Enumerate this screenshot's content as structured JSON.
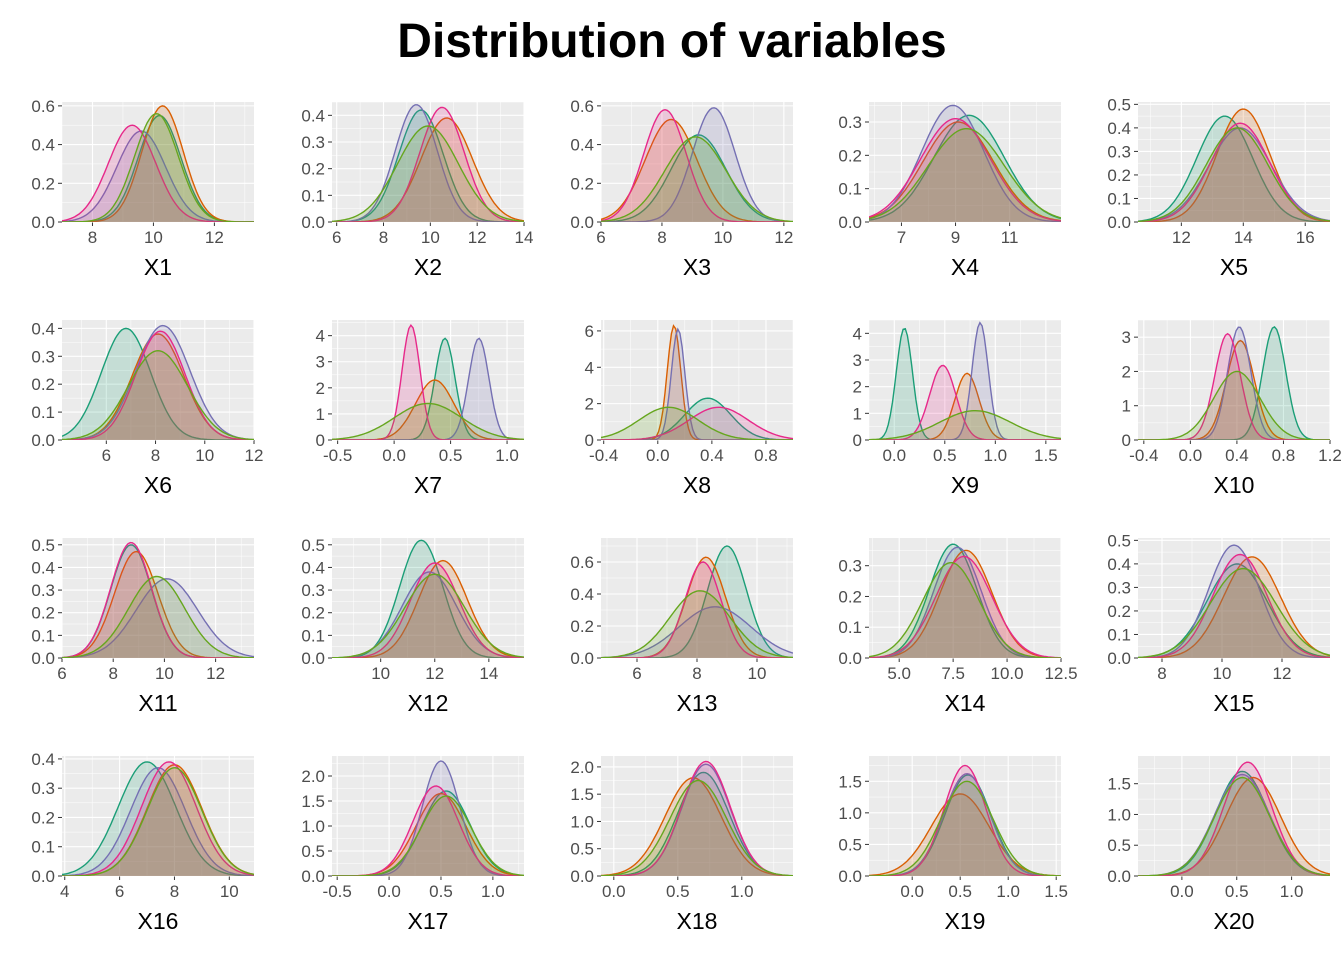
{
  "title": "Distribution of variables",
  "colors": [
    "#1b9e77",
    "#d95f02",
    "#7570b3",
    "#e7298a",
    "#66a61e"
  ],
  "chart_data": [
    {
      "type": "area",
      "xlabel": "X1",
      "xlim": [
        7,
        13.3
      ],
      "ylim": [
        0,
        0.62
      ],
      "xticks": [
        8,
        10,
        12
      ],
      "yticks": [
        0.0,
        0.2,
        0.4,
        0.6
      ],
      "ytick_labels": [
        "0.0",
        "0.2",
        "0.4",
        "0.6"
      ],
      "series": [
        {
          "mean": 10.2,
          "sd": 0.7,
          "peak": 0.55
        },
        {
          "mean": 10.3,
          "sd": 0.68,
          "peak": 0.6
        },
        {
          "mean": 9.6,
          "sd": 0.8,
          "peak": 0.47
        },
        {
          "mean": 9.3,
          "sd": 0.78,
          "peak": 0.5
        },
        {
          "mean": 10.1,
          "sd": 0.72,
          "peak": 0.56
        }
      ]
    },
    {
      "type": "area",
      "xlabel": "X2",
      "xlim": [
        5.8,
        14
      ],
      "ylim": [
        0,
        0.45
      ],
      "xticks": [
        6,
        8,
        10,
        12,
        14
      ],
      "yticks": [
        0.0,
        0.1,
        0.2,
        0.3,
        0.4
      ],
      "ytick_labels": [
        "0.0",
        "0.1",
        "0.2",
        "0.3",
        "0.4"
      ],
      "series": [
        {
          "mean": 9.6,
          "sd": 0.95,
          "peak": 0.42
        },
        {
          "mean": 10.7,
          "sd": 1.1,
          "peak": 0.39
        },
        {
          "mean": 9.4,
          "sd": 0.9,
          "peak": 0.44
        },
        {
          "mean": 10.5,
          "sd": 0.95,
          "peak": 0.43
        },
        {
          "mean": 9.9,
          "sd": 1.3,
          "peak": 0.36
        }
      ]
    },
    {
      "type": "area",
      "xlabel": "X3",
      "xlim": [
        6,
        12.3
      ],
      "ylim": [
        0,
        0.62
      ],
      "xticks": [
        6,
        8,
        10,
        12
      ],
      "yticks": [
        0.0,
        0.2,
        0.4,
        0.6
      ],
      "ytick_labels": [
        "0.0",
        "0.2",
        "0.4",
        "0.6"
      ],
      "series": [
        {
          "mean": 9.2,
          "sd": 0.9,
          "peak": 0.45
        },
        {
          "mean": 8.3,
          "sd": 0.85,
          "peak": 0.53
        },
        {
          "mean": 9.7,
          "sd": 0.7,
          "peak": 0.59
        },
        {
          "mean": 8.1,
          "sd": 0.7,
          "peak": 0.58
        },
        {
          "mean": 9.1,
          "sd": 1.0,
          "peak": 0.44
        }
      ]
    },
    {
      "type": "area",
      "xlabel": "X4",
      "xlim": [
        5.8,
        12.9
      ],
      "ylim": [
        0,
        0.36
      ],
      "xticks": [
        7,
        9,
        11,
        13
      ],
      "yticks": [
        0.0,
        0.1,
        0.2,
        0.3
      ],
      "ytick_labels": [
        "0.0",
        "0.1",
        "0.2",
        "0.3"
      ],
      "series": [
        {
          "mean": 9.5,
          "sd": 1.3,
          "peak": 0.32
        },
        {
          "mean": 9.1,
          "sd": 1.3,
          "peak": 0.3
        },
        {
          "mean": 8.9,
          "sd": 1.15,
          "peak": 0.35
        },
        {
          "mean": 9.0,
          "sd": 1.3,
          "peak": 0.31
        },
        {
          "mean": 9.4,
          "sd": 1.4,
          "peak": 0.28
        }
      ]
    },
    {
      "type": "area",
      "xlabel": "X5",
      "xlim": [
        10.6,
        16.8
      ],
      "ylim": [
        0,
        0.51
      ],
      "xticks": [
        12,
        14,
        16
      ],
      "yticks": [
        0.0,
        0.1,
        0.2,
        0.3,
        0.4,
        0.5
      ],
      "ytick_labels": [
        "0.0",
        "0.1",
        "0.2",
        "0.3",
        "0.4",
        "0.5"
      ],
      "series": [
        {
          "mean": 13.4,
          "sd": 0.9,
          "peak": 0.45
        },
        {
          "mean": 14.0,
          "sd": 0.85,
          "peak": 0.48
        },
        {
          "mean": 13.9,
          "sd": 1.0,
          "peak": 0.4
        },
        {
          "mean": 13.9,
          "sd": 0.95,
          "peak": 0.42
        },
        {
          "mean": 13.8,
          "sd": 1.0,
          "peak": 0.4
        }
      ]
    },
    {
      "type": "area",
      "xlabel": "X6",
      "xlim": [
        4.2,
        12
      ],
      "ylim": [
        0,
        0.43
      ],
      "xticks": [
        4,
        6,
        8,
        10,
        12
      ],
      "yticks": [
        0.0,
        0.1,
        0.2,
        0.3,
        0.4
      ],
      "ytick_labels": [
        "0.0",
        "0.1",
        "0.2",
        "0.3",
        "0.4"
      ],
      "series": [
        {
          "mean": 6.8,
          "sd": 1.0,
          "peak": 0.4
        },
        {
          "mean": 8.1,
          "sd": 1.05,
          "peak": 0.38
        },
        {
          "mean": 8.3,
          "sd": 1.1,
          "peak": 0.41
        },
        {
          "mean": 8.2,
          "sd": 1.0,
          "peak": 0.39
        },
        {
          "mean": 8.1,
          "sd": 1.2,
          "peak": 0.32
        }
      ]
    },
    {
      "type": "area",
      "xlabel": "X7",
      "xlim": [
        -0.55,
        1.15
      ],
      "ylim": [
        0,
        4.6
      ],
      "xticks": [
        -0.5,
        0.0,
        0.5,
        1.0
      ],
      "xtick_labels": [
        "-0.5",
        "0.0",
        "0.5",
        "1.0"
      ],
      "yticks": [
        0,
        1,
        2,
        3,
        4
      ],
      "ytick_labels": [
        "0",
        "1",
        "2",
        "3",
        "4"
      ],
      "series": [
        {
          "mean": 0.45,
          "sd": 0.09,
          "peak": 3.9
        },
        {
          "mean": 0.36,
          "sd": 0.17,
          "peak": 2.3
        },
        {
          "mean": 0.75,
          "sd": 0.09,
          "peak": 3.9
        },
        {
          "mean": 0.15,
          "sd": 0.08,
          "peak": 4.4
        },
        {
          "mean": 0.3,
          "sd": 0.3,
          "peak": 1.4
        }
      ]
    },
    {
      "type": "area",
      "xlabel": "X8",
      "xlim": [
        -0.42,
        1.0
      ],
      "ylim": [
        0,
        6.6
      ],
      "xticks": [
        -0.4,
        0.0,
        0.4,
        0.8
      ],
      "xtick_labels": [
        "-0.4",
        "0.0",
        "0.4",
        "0.8"
      ],
      "yticks": [
        0,
        2,
        4,
        6
      ],
      "ytick_labels": [
        "0",
        "2",
        "4",
        "6"
      ],
      "series": [
        {
          "mean": 0.37,
          "sd": 0.17,
          "peak": 2.3
        },
        {
          "mean": 0.12,
          "sd": 0.05,
          "peak": 6.3
        },
        {
          "mean": 0.15,
          "sd": 0.05,
          "peak": 6.1
        },
        {
          "mean": 0.45,
          "sd": 0.22,
          "peak": 1.8
        },
        {
          "mean": 0.08,
          "sd": 0.22,
          "peak": 1.8
        }
      ]
    },
    {
      "type": "area",
      "xlabel": "X9",
      "xlim": [
        -0.25,
        1.65
      ],
      "ylim": [
        0,
        4.5
      ],
      "xticks": [
        0.0,
        0.5,
        1.0,
        1.5
      ],
      "xtick_labels": [
        "0.0",
        "0.5",
        "1.0",
        "1.5"
      ],
      "yticks": [
        0,
        1,
        2,
        3,
        4
      ],
      "ytick_labels": [
        "0",
        "1",
        "2",
        "3",
        "4"
      ],
      "series": [
        {
          "mean": 0.1,
          "sd": 0.08,
          "peak": 4.2
        },
        {
          "mean": 0.72,
          "sd": 0.12,
          "peak": 2.5
        },
        {
          "mean": 0.85,
          "sd": 0.08,
          "peak": 4.4
        },
        {
          "mean": 0.48,
          "sd": 0.13,
          "peak": 2.8
        },
        {
          "mean": 0.8,
          "sd": 0.35,
          "peak": 1.1
        }
      ]
    },
    {
      "type": "area",
      "xlabel": "X10",
      "xlim": [
        -0.45,
        1.2
      ],
      "ylim": [
        0,
        3.5
      ],
      "xticks": [
        -0.4,
        0.0,
        0.4,
        0.8,
        1.2
      ],
      "xtick_labels": [
        "-0.4",
        "0.0",
        "0.4",
        "0.8",
        "1.2"
      ],
      "yticks": [
        0,
        1,
        2,
        3
      ],
      "ytick_labels": [
        "0",
        "1",
        "2",
        "3"
      ],
      "series": [
        {
          "mean": 0.72,
          "sd": 0.1,
          "peak": 3.3
        },
        {
          "mean": 0.43,
          "sd": 0.12,
          "peak": 2.9
        },
        {
          "mean": 0.42,
          "sd": 0.1,
          "peak": 3.3
        },
        {
          "mean": 0.32,
          "sd": 0.11,
          "peak": 3.1
        },
        {
          "mean": 0.4,
          "sd": 0.2,
          "peak": 2.0
        }
      ]
    },
    {
      "type": "area",
      "xlabel": "X11",
      "xlim": [
        6,
        13.5
      ],
      "ylim": [
        0,
        0.53
      ],
      "xticks": [
        6,
        8,
        10,
        12
      ],
      "yticks": [
        0.0,
        0.1,
        0.2,
        0.3,
        0.4,
        0.5
      ],
      "ytick_labels": [
        "0.0",
        "0.1",
        "0.2",
        "0.3",
        "0.4",
        "0.5"
      ],
      "series": [
        {
          "mean": 8.7,
          "sd": 0.8,
          "peak": 0.5
        },
        {
          "mean": 8.9,
          "sd": 0.85,
          "peak": 0.47
        },
        {
          "mean": 10.1,
          "sd": 1.2,
          "peak": 0.35
        },
        {
          "mean": 8.7,
          "sd": 0.8,
          "peak": 0.51
        },
        {
          "mean": 9.7,
          "sd": 1.1,
          "peak": 0.36
        }
      ]
    },
    {
      "type": "area",
      "xlabel": "X12",
      "xlim": [
        8.2,
        15.3
      ],
      "ylim": [
        0,
        0.53
      ],
      "xticks": [
        8,
        10,
        12,
        14
      ],
      "yticks": [
        0.0,
        0.1,
        0.2,
        0.3,
        0.4,
        0.5
      ],
      "ytick_labels": [
        "0.0",
        "0.1",
        "0.2",
        "0.3",
        "0.4",
        "0.5"
      ],
      "series": [
        {
          "mean": 11.5,
          "sd": 0.8,
          "peak": 0.52
        },
        {
          "mean": 12.3,
          "sd": 0.9,
          "peak": 0.43
        },
        {
          "mean": 11.8,
          "sd": 1.0,
          "peak": 0.38
        },
        {
          "mean": 12.0,
          "sd": 0.9,
          "peak": 0.42
        },
        {
          "mean": 12.0,
          "sd": 1.1,
          "peak": 0.37
        }
      ]
    },
    {
      "type": "area",
      "xlabel": "X13",
      "xlim": [
        4.8,
        11.2
      ],
      "ylim": [
        0,
        0.75
      ],
      "xticks": [
        6,
        8,
        10
      ],
      "yticks": [
        0.0,
        0.2,
        0.4,
        0.6
      ],
      "ytick_labels": [
        "0.0",
        "0.2",
        "0.4",
        "0.6"
      ],
      "series": [
        {
          "mean": 9.0,
          "sd": 0.65,
          "peak": 0.7
        },
        {
          "mean": 8.3,
          "sd": 0.65,
          "peak": 0.63
        },
        {
          "mean": 8.6,
          "sd": 1.2,
          "peak": 0.32
        },
        {
          "mean": 8.2,
          "sd": 0.6,
          "peak": 0.6
        },
        {
          "mean": 8.1,
          "sd": 1.0,
          "peak": 0.42
        }
      ]
    },
    {
      "type": "area",
      "xlabel": "X14",
      "xlim": [
        3.6,
        12.5
      ],
      "ylim": [
        0,
        0.39
      ],
      "xticks": [
        5.0,
        7.5,
        10.0,
        12.5
      ],
      "xtick_labels": [
        "5.0",
        "7.5",
        "10.0",
        "12.5"
      ],
      "yticks": [
        0.0,
        0.1,
        0.2,
        0.3
      ],
      "ytick_labels": [
        "0.0",
        "0.1",
        "0.2",
        "0.3"
      ],
      "series": [
        {
          "mean": 7.5,
          "sd": 1.1,
          "peak": 0.37
        },
        {
          "mean": 8.1,
          "sd": 1.2,
          "peak": 0.35
        },
        {
          "mean": 7.7,
          "sd": 1.1,
          "peak": 0.36
        },
        {
          "mean": 8.0,
          "sd": 1.3,
          "peak": 0.33
        },
        {
          "mean": 7.4,
          "sd": 1.3,
          "peak": 0.31
        }
      ]
    },
    {
      "type": "area",
      "xlabel": "X15",
      "xlim": [
        7.2,
        13.6
      ],
      "ylim": [
        0,
        0.51
      ],
      "xticks": [
        8,
        10,
        12
      ],
      "yticks": [
        0.0,
        0.1,
        0.2,
        0.3,
        0.4,
        0.5
      ],
      "ytick_labels": [
        "0.0",
        "0.1",
        "0.2",
        "0.3",
        "0.4",
        "0.5"
      ],
      "series": [
        {
          "mean": 10.5,
          "sd": 1.0,
          "peak": 0.4
        },
        {
          "mean": 11.0,
          "sd": 0.95,
          "peak": 0.43
        },
        {
          "mean": 10.4,
          "sd": 0.85,
          "peak": 0.48
        },
        {
          "mean": 10.6,
          "sd": 0.9,
          "peak": 0.44
        },
        {
          "mean": 10.7,
          "sd": 1.1,
          "peak": 0.38
        }
      ]
    },
    {
      "type": "area",
      "xlabel": "X16",
      "xlim": [
        3.9,
        10.9
      ],
      "ylim": [
        0,
        0.41
      ],
      "xticks": [
        4,
        6,
        8,
        10
      ],
      "yticks": [
        0.0,
        0.1,
        0.2,
        0.3,
        0.4
      ],
      "ytick_labels": [
        "0.0",
        "0.1",
        "0.2",
        "0.3",
        "0.4"
      ],
      "series": [
        {
          "mean": 7.0,
          "sd": 1.05,
          "peak": 0.39
        },
        {
          "mean": 8.0,
          "sd": 1.0,
          "peak": 0.38
        },
        {
          "mean": 7.4,
          "sd": 1.0,
          "peak": 0.37
        },
        {
          "mean": 7.8,
          "sd": 1.0,
          "peak": 0.39
        },
        {
          "mean": 8.0,
          "sd": 1.0,
          "peak": 0.37
        }
      ]
    },
    {
      "type": "area",
      "xlabel": "X17",
      "xlim": [
        -0.55,
        1.3
      ],
      "ylim": [
        0,
        2.4
      ],
      "xticks": [
        -0.5,
        0.0,
        0.5,
        1.0
      ],
      "xtick_labels": [
        "-0.5",
        "0.0",
        "0.5",
        "1.0"
      ],
      "yticks": [
        0.0,
        0.5,
        1.0,
        1.5,
        2.0
      ],
      "ytick_labels": [
        "0.0",
        "0.5",
        "1.0",
        "1.5",
        "2.0"
      ],
      "series": [
        {
          "mean": 0.55,
          "sd": 0.23,
          "peak": 1.7
        },
        {
          "mean": 0.5,
          "sd": 0.24,
          "peak": 1.65
        },
        {
          "mean": 0.5,
          "sd": 0.18,
          "peak": 2.3
        },
        {
          "mean": 0.45,
          "sd": 0.22,
          "peak": 1.8
        },
        {
          "mean": 0.55,
          "sd": 0.24,
          "peak": 1.6
        }
      ]
    },
    {
      "type": "area",
      "xlabel": "X18",
      "xlim": [
        -0.1,
        1.4
      ],
      "ylim": [
        0,
        2.2
      ],
      "xticks": [
        0.0,
        0.5,
        1.0
      ],
      "xtick_labels": [
        "0.0",
        "0.5",
        "1.0"
      ],
      "yticks": [
        0.0,
        0.5,
        1.0,
        1.5,
        2.0
      ],
      "ytick_labels": [
        "0.0",
        "0.5",
        "1.0",
        "1.5",
        "2.0"
      ],
      "series": [
        {
          "mean": 0.7,
          "sd": 0.2,
          "peak": 1.9
        },
        {
          "mean": 0.62,
          "sd": 0.22,
          "peak": 1.8
        },
        {
          "mean": 0.72,
          "sd": 0.19,
          "peak": 2.05
        },
        {
          "mean": 0.72,
          "sd": 0.19,
          "peak": 2.1
        },
        {
          "mean": 0.66,
          "sd": 0.22,
          "peak": 1.75
        }
      ]
    },
    {
      "type": "area",
      "xlabel": "X19",
      "xlim": [
        -0.45,
        1.55
      ],
      "ylim": [
        0,
        1.9
      ],
      "xticks": [
        0.0,
        0.5,
        1.0,
        1.5
      ],
      "xtick_labels": [
        "0.0",
        "0.5",
        "1.0",
        "1.5"
      ],
      "yticks": [
        0.0,
        0.5,
        1.0,
        1.5
      ],
      "ytick_labels": [
        "0.0",
        "0.5",
        "1.0",
        "1.5"
      ],
      "series": [
        {
          "mean": 0.58,
          "sd": 0.24,
          "peak": 1.6
        },
        {
          "mean": 0.5,
          "sd": 0.3,
          "peak": 1.3
        },
        {
          "mean": 0.57,
          "sd": 0.24,
          "peak": 1.62
        },
        {
          "mean": 0.55,
          "sd": 0.22,
          "peak": 1.75
        },
        {
          "mean": 0.57,
          "sd": 0.27,
          "peak": 1.5
        }
      ]
    },
    {
      "type": "area",
      "xlabel": "X20",
      "xlim": [
        -0.4,
        1.35
      ],
      "ylim": [
        0,
        1.95
      ],
      "xticks": [
        0.0,
        0.5,
        1.0
      ],
      "xtick_labels": [
        "0.0",
        "0.5",
        "1.0"
      ],
      "yticks": [
        0.0,
        0.5,
        1.0,
        1.5
      ],
      "ytick_labels": [
        "0.0",
        "0.5",
        "1.0",
        "1.5"
      ],
      "series": [
        {
          "mean": 0.55,
          "sd": 0.24,
          "peak": 1.7
        },
        {
          "mean": 0.65,
          "sd": 0.25,
          "peak": 1.6
        },
        {
          "mean": 0.55,
          "sd": 0.25,
          "peak": 1.65
        },
        {
          "mean": 0.6,
          "sd": 0.22,
          "peak": 1.85
        },
        {
          "mean": 0.55,
          "sd": 0.25,
          "peak": 1.6
        }
      ]
    }
  ]
}
